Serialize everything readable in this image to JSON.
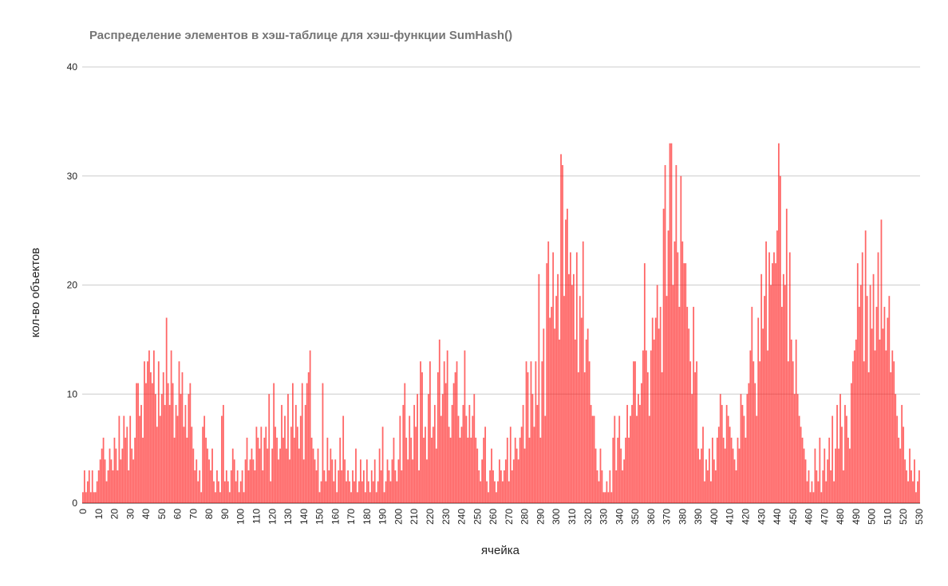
{
  "chart_data": {
    "type": "bar",
    "title": "Распределение элементов в хэш-таблице для хэш-функции SumHash()",
    "xlabel": "ячейка",
    "ylabel": "кол-во объектов",
    "ylim": [
      0,
      40
    ],
    "yticks": [
      0,
      10,
      20,
      30,
      40
    ],
    "grid": true,
    "legend": "none",
    "bar_color": "#ff0000",
    "x_start": 0,
    "x_tick_step": 10,
    "values": [
      1,
      3,
      1,
      2,
      3,
      1,
      3,
      1,
      1,
      2,
      3,
      4,
      5,
      6,
      4,
      2,
      3,
      5,
      4,
      3,
      6,
      5,
      3,
      8,
      4,
      5,
      8,
      6,
      7,
      3,
      8,
      5,
      4,
      6,
      11,
      11,
      8,
      9,
      6,
      13,
      11,
      13,
      14,
      12,
      11,
      14,
      10,
      7,
      13,
      8,
      10,
      12,
      9,
      17,
      11,
      9,
      14,
      11,
      6,
      9,
      8,
      13,
      10,
      12,
      7,
      9,
      6,
      10,
      11,
      7,
      5,
      3,
      4,
      2,
      3,
      1,
      7,
      8,
      6,
      5,
      4,
      3,
      5,
      2,
      1,
      3,
      2,
      1,
      8,
      9,
      2,
      3,
      2,
      1,
      3,
      5,
      4,
      2,
      3,
      1,
      2,
      3,
      1,
      4,
      6,
      3,
      4,
      5,
      4,
      3,
      7,
      6,
      5,
      7,
      3,
      6,
      7,
      5,
      10,
      2,
      5,
      11,
      7,
      6,
      4,
      5,
      9,
      6,
      8,
      5,
      10,
      4,
      7,
      11,
      6,
      9,
      7,
      5,
      8,
      11,
      4,
      9,
      11,
      12,
      14,
      6,
      5,
      4,
      3,
      5,
      1,
      2,
      11,
      3,
      2,
      6,
      3,
      5,
      4,
      2,
      4,
      1,
      3,
      6,
      3,
      8,
      4,
      2,
      3,
      2,
      1,
      3,
      2,
      5,
      1,
      2,
      4,
      2,
      3,
      1,
      4,
      2,
      1,
      3,
      2,
      4,
      1,
      2,
      5,
      3,
      7,
      1,
      2,
      4,
      3,
      2,
      4,
      6,
      3,
      2,
      4,
      8,
      3,
      9,
      11,
      6,
      4,
      8,
      6,
      4,
      9,
      7,
      10,
      3,
      13,
      12,
      6,
      7,
      4,
      10,
      13,
      6,
      7,
      9,
      5,
      12,
      15,
      8,
      10,
      13,
      11,
      14,
      7,
      6,
      9,
      11,
      12,
      13,
      8,
      6,
      7,
      9,
      14,
      8,
      6,
      9,
      6,
      8,
      10,
      6,
      5,
      3,
      2,
      4,
      6,
      7,
      2,
      1,
      3,
      5,
      3,
      2,
      1,
      2,
      4,
      3,
      2,
      3,
      4,
      6,
      2,
      7,
      3,
      4,
      6,
      5,
      4,
      6,
      7,
      9,
      5,
      13,
      12,
      6,
      13,
      10,
      7,
      13,
      9,
      21,
      6,
      13,
      16,
      8,
      22,
      24,
      17,
      18,
      23,
      16,
      19,
      21,
      15,
      32,
      31,
      19,
      26,
      27,
      21,
      23,
      20,
      21,
      15,
      23,
      12,
      19,
      17,
      24,
      12,
      15,
      16,
      13,
      9,
      8,
      8,
      5,
      3,
      2,
      5,
      3,
      1,
      1,
      2,
      1,
      3,
      1,
      6,
      8,
      3,
      6,
      8,
      5,
      3,
      4,
      6,
      9,
      6,
      8,
      9,
      13,
      13,
      8,
      10,
      9,
      11,
      14,
      22,
      14,
      12,
      8,
      14,
      17,
      15,
      17,
      20,
      16,
      18,
      12,
      27,
      31,
      19,
      25,
      33,
      33,
      20,
      24,
      31,
      23,
      18,
      30,
      24,
      22,
      22,
      18,
      16,
      13,
      10,
      18,
      12,
      13,
      5,
      4,
      5,
      7,
      2,
      4,
      3,
      5,
      2,
      6,
      4,
      3,
      6,
      7,
      10,
      9,
      6,
      5,
      9,
      8,
      7,
      6,
      5,
      4,
      3,
      6,
      5,
      10,
      9,
      8,
      6,
      10,
      11,
      14,
      18,
      13,
      11,
      8,
      17,
      13,
      21,
      16,
      19,
      24,
      14,
      23,
      20,
      22,
      23,
      22,
      25,
      33,
      30,
      18,
      21,
      20,
      27,
      13,
      23,
      15,
      13,
      10,
      15,
      10,
      8,
      7,
      6,
      5,
      4,
      2,
      3,
      1,
      2,
      1,
      5,
      3,
      2,
      6,
      1,
      3,
      5,
      2,
      4,
      6,
      3,
      8,
      2,
      5,
      9,
      5,
      10,
      7,
      3,
      9,
      8,
      6,
      5,
      11,
      13,
      14,
      15,
      22,
      18,
      20,
      23,
      13,
      25,
      19,
      12,
      20,
      16,
      21,
      14,
      18,
      23,
      15,
      26,
      16,
      18,
      14,
      17,
      19,
      12,
      14,
      13,
      10,
      8,
      6,
      5,
      9,
      7,
      4,
      3,
      2,
      5,
      3,
      2,
      4,
      1,
      2,
      3
    ]
  }
}
